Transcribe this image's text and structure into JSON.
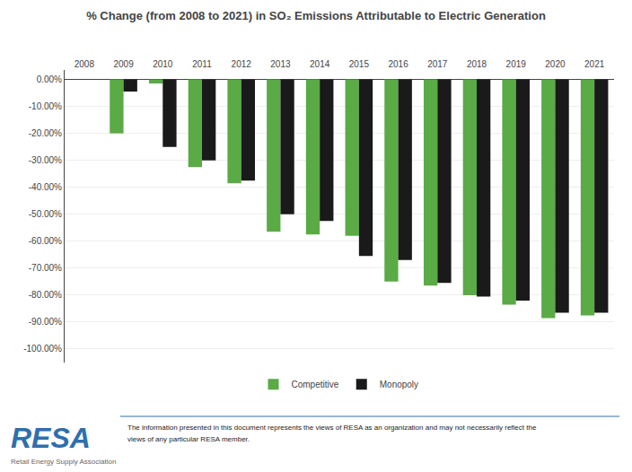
{
  "chart_data": {
    "type": "bar",
    "title": "% Change (from 2008 to 2021) in SO₂ Emissions Attributable to Electric Generation",
    "categories": [
      "2008",
      "2009",
      "2010",
      "2011",
      "2012",
      "2013",
      "2014",
      "2015",
      "2016",
      "2017",
      "2018",
      "2019",
      "2020",
      "2021"
    ],
    "series": [
      {
        "name": "Competitive",
        "color": "#5aaa46",
        "values": [
          0.0,
          -20.0,
          -1.5,
          -32.5,
          -38.5,
          -56.5,
          -57.5,
          -58.0,
          -75.0,
          -76.5,
          -80.0,
          -83.5,
          -88.5,
          -87.5
        ]
      },
      {
        "name": "Monopoly",
        "color": "#1a1a1a",
        "values": [
          0.0,
          -4.5,
          -25.0,
          -30.0,
          -37.5,
          -50.0,
          -52.5,
          -65.5,
          -67.0,
          -75.5,
          -80.5,
          -82.0,
          -86.5,
          -86.5
        ]
      }
    ],
    "ylim": [
      -105.0,
      3.5
    ],
    "yticks": [
      {
        "value": 0,
        "label": "0.00%"
      },
      {
        "value": -10,
        "label": "-10.00%"
      },
      {
        "value": -20,
        "label": "-20.00%"
      },
      {
        "value": -30,
        "label": "-30.00%"
      },
      {
        "value": -40,
        "label": "-40.00%"
      },
      {
        "value": -50,
        "label": "-50.00%"
      },
      {
        "value": -60,
        "label": "-60.00%"
      },
      {
        "value": -70,
        "label": "-70.00%"
      },
      {
        "value": -80,
        "label": "-80.00%"
      },
      {
        "value": -90,
        "label": "-90.00%"
      },
      {
        "value": -100,
        "label": "-100.00%"
      }
    ],
    "grid": true,
    "legend": "bottom",
    "annotations": [
      "RESA",
      "Retail Energy Supply Association",
      "The information presented in this document represents the views of RESA as an organization and may not necessarily reflect the",
      "views of any particular RESA member."
    ]
  }
}
